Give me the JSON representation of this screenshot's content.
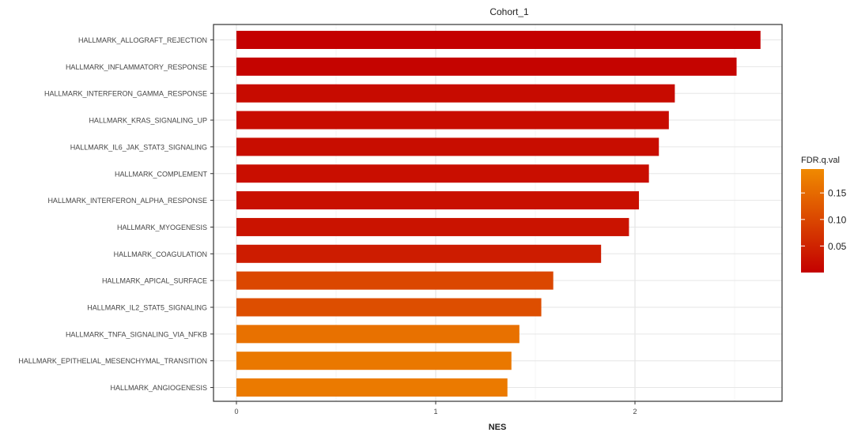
{
  "chart_data": {
    "type": "bar",
    "orientation": "horizontal",
    "title": "Cohort_1",
    "xlabel": "NES",
    "ylabel": "",
    "xlim": [
      0,
      2.72
    ],
    "xticks": [
      0,
      1,
      2
    ],
    "grid": true,
    "legend_position": "right",
    "colorbar": {
      "title": "FDR.q.val",
      "ticks": [
        0.05,
        0.1,
        0.15
      ],
      "tick_labels": [
        "0.05",
        "0.10",
        "0.15"
      ],
      "range": [
        0.0,
        0.195
      ],
      "low_color": "#c40000",
      "high_color": "#f08a00"
    },
    "categories": [
      "HALLMARK_ALLOGRAFT_REJECTION",
      "HALLMARK_INFLAMMATORY_RESPONSE",
      "HALLMARK_INTERFERON_GAMMA_RESPONSE",
      "HALLMARK_KRAS_SIGNALING_UP",
      "HALLMARK_IL6_JAK_STAT3_SIGNALING",
      "HALLMARK_COMPLEMENT",
      "HALLMARK_INTERFERON_ALPHA_RESPONSE",
      "HALLMARK_MYOGENESIS",
      "HALLMARK_COAGULATION",
      "HALLMARK_APICAL_SURFACE",
      "HALLMARK_IL2_STAT5_SIGNALING",
      "HALLMARK_TNFA_SIGNALING_VIA_NFKB",
      "HALLMARK_EPITHELIAL_MESENCHYMAL_TRANSITION",
      "HALLMARK_ANGIOGENESIS"
    ],
    "values": [
      2.63,
      2.51,
      2.2,
      2.17,
      2.12,
      2.07,
      2.02,
      1.97,
      1.83,
      1.59,
      1.53,
      1.42,
      1.38,
      1.36
    ],
    "fdr_q_values": [
      0.0,
      0.005,
      0.015,
      0.017,
      0.018,
      0.02,
      0.022,
      0.027,
      0.04,
      0.1,
      0.11,
      0.16,
      0.17,
      0.172
    ]
  }
}
